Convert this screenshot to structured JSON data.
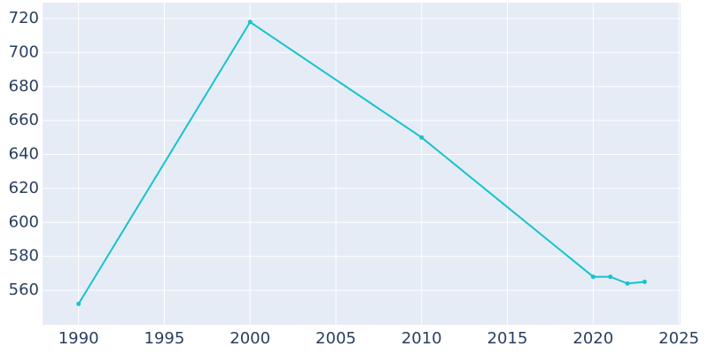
{
  "chart_data": {
    "type": "line",
    "x": [
      1990,
      2000,
      2010,
      2020,
      2021,
      2022,
      2023
    ],
    "series": [
      {
        "color": "#17c3cc",
        "values": [
          552,
          718,
          650,
          568,
          568,
          564,
          565
        ]
      }
    ],
    "xlim": [
      1987.9,
      2025.1
    ],
    "xticks": [
      1990,
      1995,
      2000,
      2005,
      2010,
      2015,
      2020,
      2025
    ],
    "ylim": [
      539.7,
      729.4
    ],
    "yticks": [
      560,
      580,
      600,
      620,
      640,
      660,
      680,
      700,
      720
    ],
    "grid": true
  }
}
